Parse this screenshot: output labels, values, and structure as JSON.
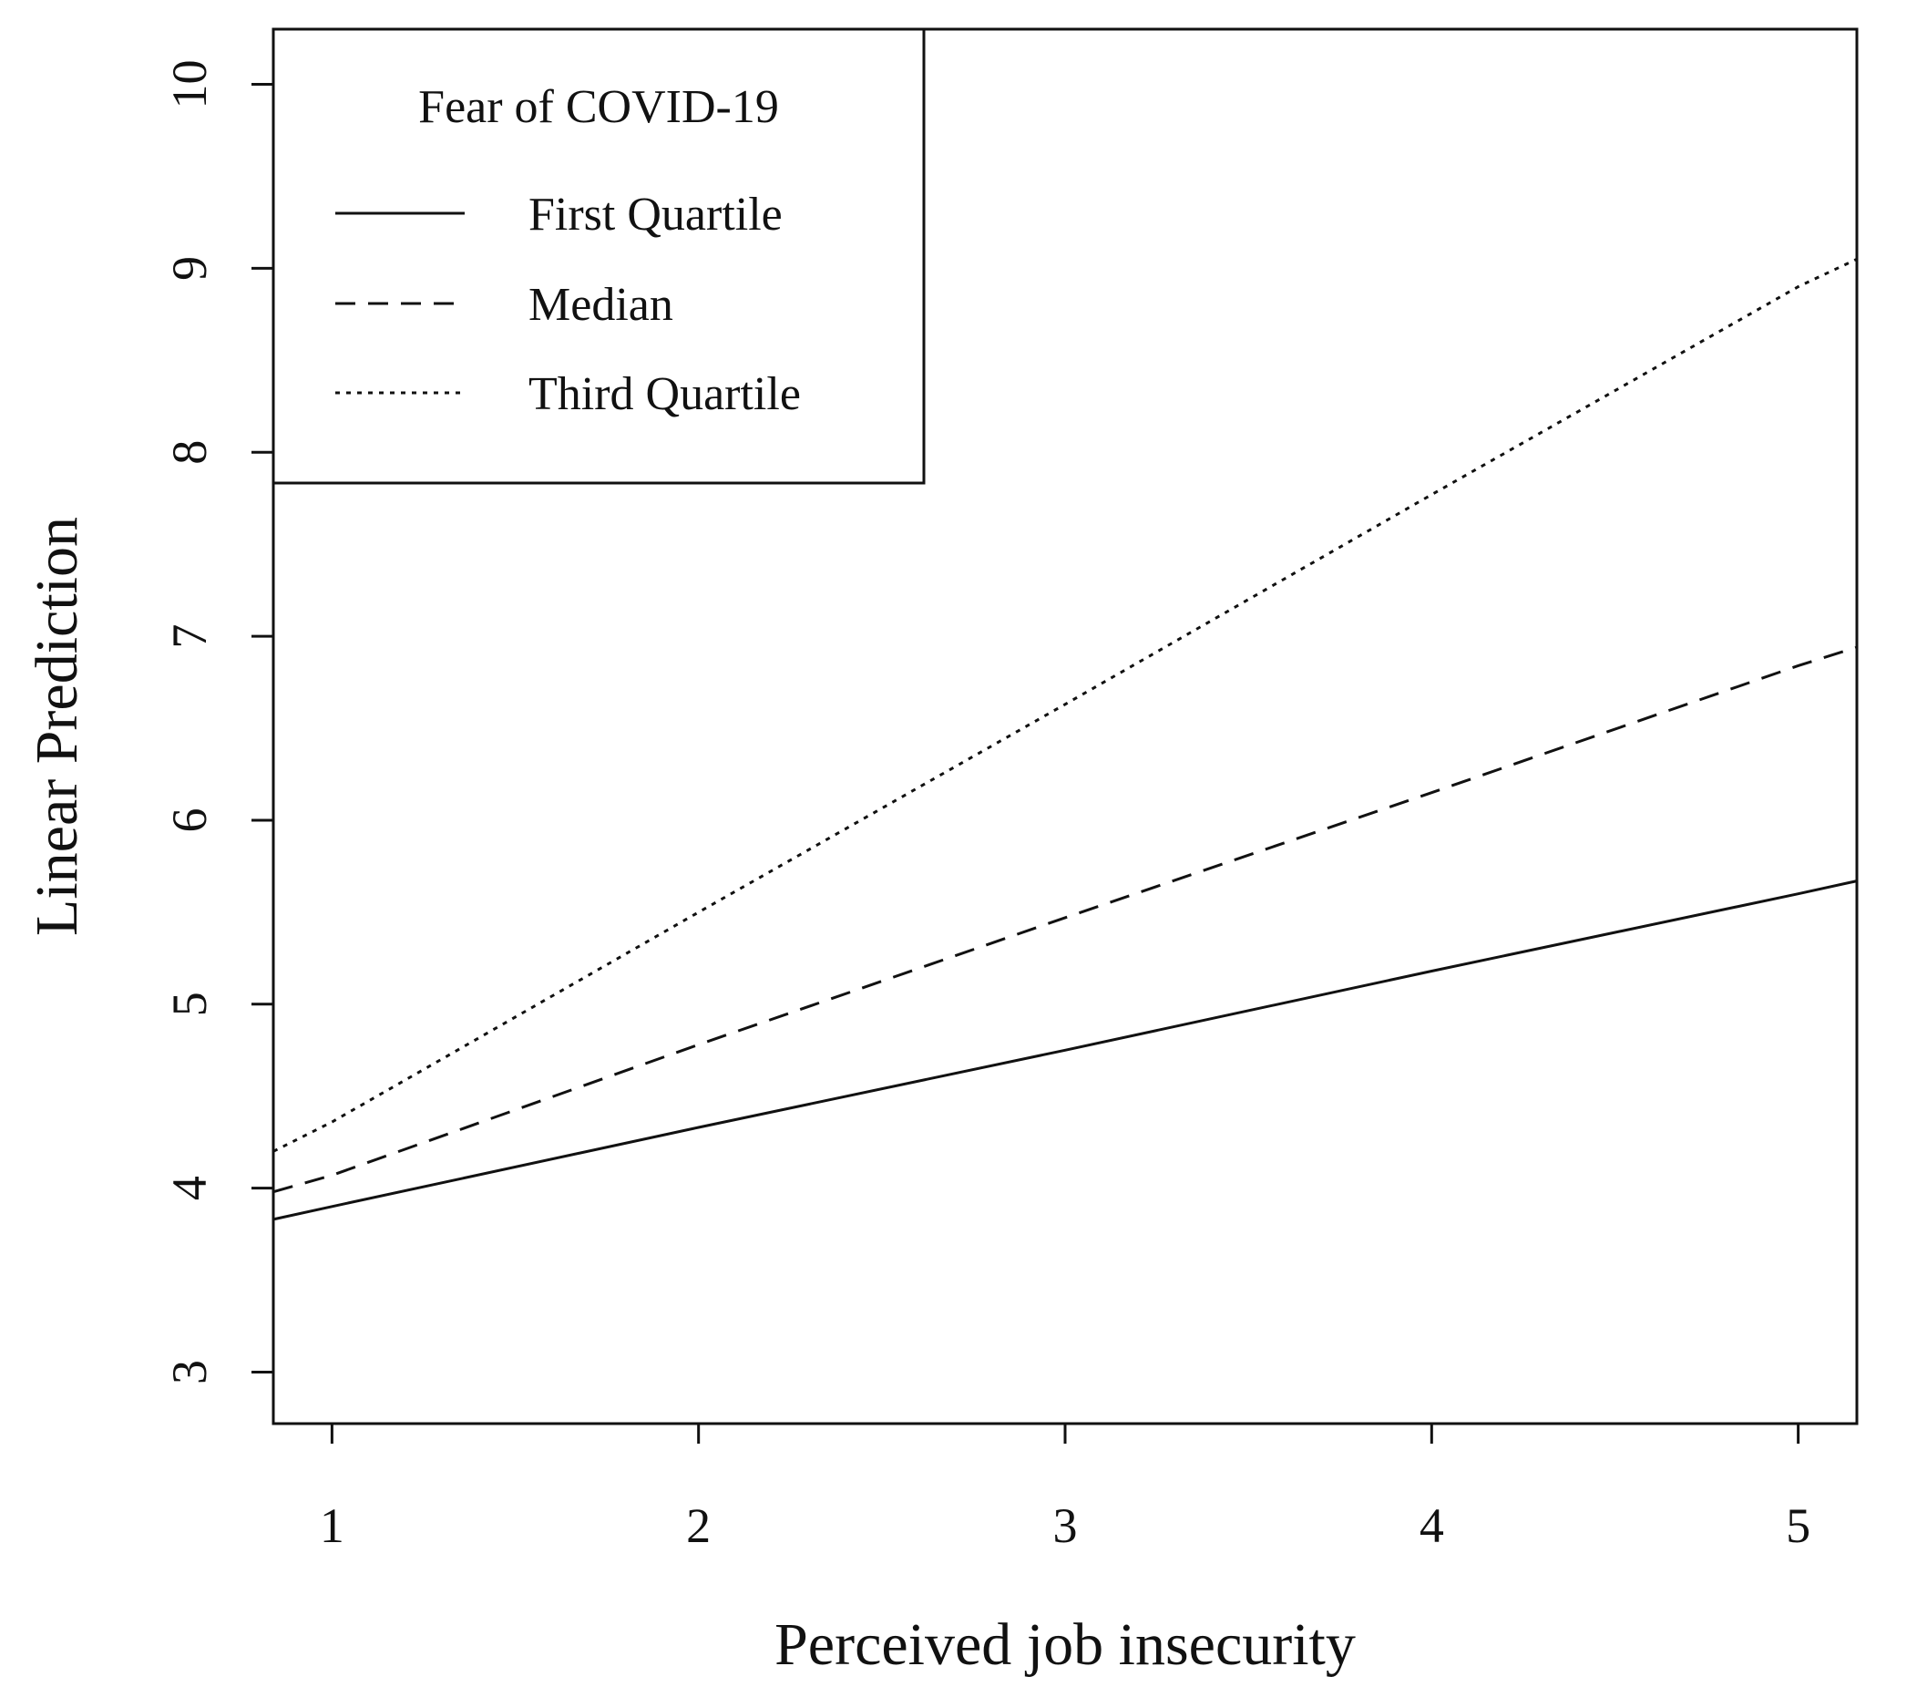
{
  "chart_data": {
    "type": "line",
    "title": "",
    "xlabel": "Perceived job insecurity",
    "ylabel": "Linear Prediction",
    "x_ticks": [
      1,
      2,
      3,
      4,
      5
    ],
    "y_ticks": [
      3,
      4,
      5,
      6,
      7,
      8,
      9,
      10
    ],
    "xlim": [
      0.84,
      5.16
    ],
    "ylim": [
      2.72,
      10.3
    ],
    "grid": false,
    "legend": {
      "title": "Fear of COVID-19",
      "placement": "top-left"
    },
    "series": [
      {
        "name": "First Quartile",
        "line_style": "solid",
        "x": [
          0.84,
          1,
          2,
          3,
          4,
          5,
          5.16
        ],
        "y": [
          3.83,
          3.9,
          4.33,
          4.75,
          5.18,
          5.6,
          5.67
        ]
      },
      {
        "name": "Median",
        "line_style": "dashed",
        "x": [
          0.84,
          1,
          2,
          3,
          4,
          5,
          5.16
        ],
        "y": [
          3.98,
          4.07,
          4.78,
          5.47,
          6.15,
          6.84,
          6.94
        ]
      },
      {
        "name": "Third Quartile",
        "line_style": "dotted",
        "x": [
          0.84,
          1,
          2,
          3,
          4,
          5,
          5.16
        ],
        "y": [
          4.2,
          4.36,
          5.5,
          6.63,
          7.77,
          8.9,
          9.05
        ]
      }
    ],
    "colors": {
      "lines": "#111111",
      "axes": "#111111",
      "background": "#ffffff"
    }
  }
}
